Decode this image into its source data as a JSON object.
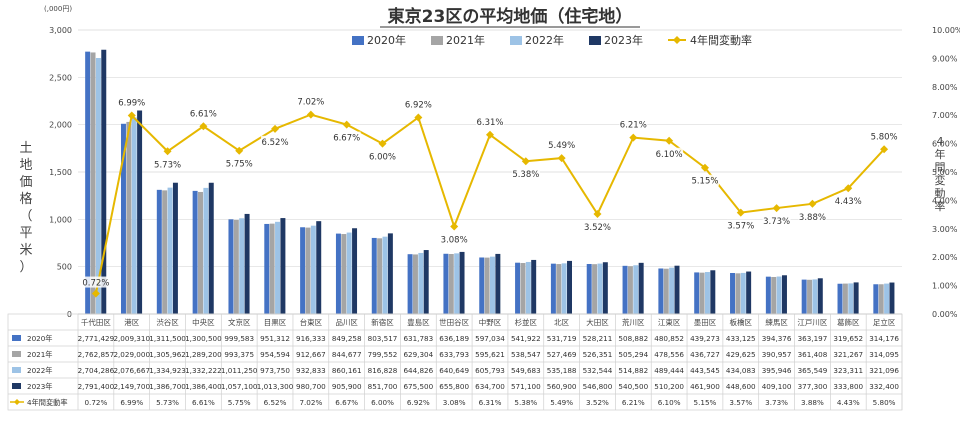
{
  "chart_data": {
    "type": "bar",
    "title": "東京23区の平均地価（住宅地）",
    "y_unit": "(,000円)",
    "ylabel": "土地価格（平米）",
    "y2label": "4年間変動率",
    "ylim": [
      0,
      3000
    ],
    "y_ticks": [
      "0",
      "500",
      "1,000",
      "1,500",
      "2,000",
      "2,500",
      "3,000"
    ],
    "y2lim": [
      0,
      10
    ],
    "y2_ticks": [
      "0.00%",
      "1.00%",
      "2.00%",
      "3.00%",
      "4.00%",
      "5.00%",
      "6.00%",
      "7.00%",
      "8.00%",
      "9.00%",
      "10.00%"
    ],
    "legend_position": "top",
    "grid": true,
    "categories": [
      "千代田区",
      "港区",
      "渋谷区",
      "中央区",
      "文京区",
      "目黒区",
      "台東区",
      "品川区",
      "新宿区",
      "豊島区",
      "世田谷区",
      "中野区",
      "杉並区",
      "北区",
      "大田区",
      "荒川区",
      "江東区",
      "墨田区",
      "板橋区",
      "練馬区",
      "江戸川区",
      "葛飾区",
      "足立区"
    ],
    "series": [
      {
        "name": "2020年",
        "color": "#4472C4",
        "values": [
          2771429,
          2009310,
          1311500,
          1300500,
          999583,
          951312,
          916333,
          849258,
          803517,
          631783,
          636189,
          597034,
          541922,
          531719,
          528211,
          508882,
          480852,
          439273,
          433125,
          394376,
          363197,
          319652,
          314176
        ],
        "labels": [
          "2,771,429",
          "2,009,310",
          "1,311,500",
          "1,300,500",
          "999,583",
          "951,312",
          "916,333",
          "849,258",
          "803,517",
          "631,783",
          "636,189",
          "597,034",
          "541,922",
          "531,719",
          "528,211",
          "508,882",
          "480,852",
          "439,273",
          "433,125",
          "394,376",
          "363,197",
          "319,652",
          "314,176"
        ]
      },
      {
        "name": "2021年",
        "color": "#A5A5A5",
        "values": [
          2762857,
          2029000,
          1305962,
          1289200,
          993375,
          954594,
          912667,
          844677,
          799552,
          629304,
          633793,
          595621,
          538547,
          527469,
          526351,
          505294,
          478556,
          436727,
          429625,
          390957,
          361408,
          321267,
          314095
        ],
        "labels": [
          "2,762,857",
          "2,029,000",
          "1,305,962",
          "1,289,200",
          "993,375",
          "954,594",
          "912,667",
          "844,677",
          "799,552",
          "629,304",
          "633,793",
          "595,621",
          "538,547",
          "527,469",
          "526,351",
          "505,294",
          "478,556",
          "436,727",
          "429,625",
          "390,957",
          "361,408",
          "321,267",
          "314,095"
        ]
      },
      {
        "name": "2022年",
        "color": "#9DC3E6",
        "values": [
          2704286,
          2076667,
          1334923,
          1332222,
          1011250,
          973750,
          932833,
          860161,
          816828,
          644826,
          640649,
          605793,
          549683,
          535188,
          532544,
          514882,
          489444,
          443545,
          434083,
          395946,
          365549,
          323311,
          321096
        ],
        "labels": [
          "2,704,286",
          "2,076,667",
          "1,334,923",
          "1,332,222",
          "1,011,250",
          "973,750",
          "932,833",
          "860,161",
          "816,828",
          "644,826",
          "640,649",
          "605,793",
          "549,683",
          "535,188",
          "532,544",
          "514,882",
          "489,444",
          "443,545",
          "434,083",
          "395,946",
          "365,549",
          "323,311",
          "321,096"
        ]
      },
      {
        "name": "2023年",
        "color": "#1F3864",
        "values": [
          2791400,
          2149700,
          1386700,
          1386400,
          1057100,
          1013300,
          980700,
          905900,
          851700,
          675500,
          655800,
          634700,
          571100,
          560900,
          546800,
          540500,
          510200,
          461900,
          448600,
          409100,
          377300,
          333800,
          332400
        ],
        "labels": [
          "2,791,400",
          "2,149,700",
          "1,386,700",
          "1,386,400",
          "1,057,100",
          "1,013,300",
          "980,700",
          "905,900",
          "851,700",
          "675,500",
          "655,800",
          "634,700",
          "571,100",
          "560,900",
          "546,800",
          "540,500",
          "510,200",
          "461,900",
          "448,600",
          "409,100",
          "377,300",
          "333,800",
          "332,400"
        ]
      }
    ],
    "line_series": {
      "name": "4年間変動率",
      "color": "#E6B800",
      "values": [
        0.72,
        6.99,
        5.73,
        6.61,
        5.75,
        6.52,
        7.02,
        6.67,
        6.0,
        6.92,
        3.08,
        6.31,
        5.38,
        5.49,
        3.52,
        6.21,
        6.1,
        5.15,
        3.57,
        3.73,
        3.88,
        4.43,
        5.8
      ],
      "labels": [
        "0.72%",
        "6.99%",
        "5.73%",
        "6.61%",
        "5.75%",
        "6.52%",
        "7.02%",
        "6.67%",
        "6.00%",
        "6.92%",
        "3.08%",
        "6.31%",
        "5.38%",
        "5.49%",
        "3.52%",
        "6.21%",
        "6.10%",
        "5.15%",
        "3.57%",
        "3.73%",
        "3.88%",
        "4.43%",
        "5.80%"
      ]
    }
  }
}
